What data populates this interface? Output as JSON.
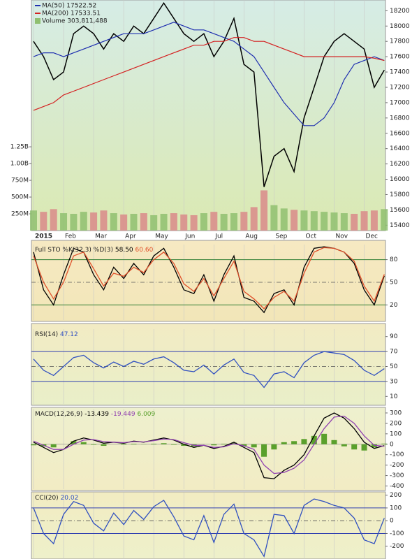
{
  "chart_data": [
    {
      "type": "price",
      "xticks": [
        {
          "value": 0,
          "label": "2015"
        },
        {
          "value": 3,
          "label": "Feb"
        },
        {
          "value": 6,
          "label": "Mar"
        },
        {
          "value": 9,
          "label": "Apr"
        },
        {
          "value": 12,
          "label": "May"
        },
        {
          "value": 15,
          "label": "Jun"
        },
        {
          "value": 18,
          "label": "Jul"
        },
        {
          "value": 21,
          "label": "Aug"
        },
        {
          "value": 24,
          "label": "Sep"
        },
        {
          "value": 27,
          "label": "Oct"
        },
        {
          "value": 30,
          "label": "Nov"
        },
        {
          "value": 33,
          "label": "Dec"
        }
      ],
      "ylim": [
        15330,
        18340
      ],
      "yticks": [
        18200,
        18000,
        17800,
        17600,
        17400,
        17200,
        17000,
        16800,
        16600,
        16400,
        16200,
        16000,
        15800,
        15600,
        15400
      ],
      "vlim": [
        0,
        3440
      ],
      "vticks": [
        {
          "value": 1250,
          "label": "1.25B"
        },
        {
          "value": 1000,
          "label": "1.00B"
        },
        {
          "value": 750,
          "label": "750M"
        },
        {
          "value": 500,
          "label": "500M"
        },
        {
          "value": 250,
          "label": "250M"
        }
      ],
      "series": [
        {
          "color": "#000000",
          "values": [
            17800,
            17600,
            17300,
            17400,
            17900,
            18000,
            17900,
            17700,
            17900,
            17800,
            18000,
            17900,
            18100,
            18300,
            18100,
            17900,
            17800,
            17900,
            17600,
            17800,
            18100,
            17500,
            17400,
            15900,
            16300,
            16400,
            16100,
            16800,
            17200,
            17600,
            17800,
            17900,
            17800,
            17700,
            17200,
            17425
          ]
        },
        {
          "name": "MA(50) 17522.52",
          "color": "#1f2fb0",
          "values": [
            17600,
            17650,
            17650,
            17600,
            17650,
            17700,
            17750,
            17800,
            17850,
            17900,
            17900,
            17900,
            17950,
            18000,
            18050,
            18000,
            17950,
            17950,
            17900,
            17850,
            17800,
            17700,
            17600,
            17400,
            17200,
            17000,
            16850,
            16700,
            16700,
            16800,
            17000,
            17300,
            17500,
            17550,
            17600,
            17550
          ]
        },
        {
          "name": "MA(200) 17533.51",
          "color": "#d42020",
          "values": [
            16900,
            16950,
            17000,
            17100,
            17150,
            17200,
            17250,
            17300,
            17350,
            17400,
            17450,
            17500,
            17550,
            17600,
            17650,
            17700,
            17750,
            17750,
            17800,
            17800,
            17850,
            17850,
            17800,
            17800,
            17750,
            17700,
            17650,
            17600,
            17600,
            17600,
            17600,
            17600,
            17600,
            17600,
            17580,
            17550
          ]
        }
      ],
      "volume": {
        "name": "Volume 303,811,488",
        "up_color": "#8fbf70",
        "down_color": "#d98a8a",
        "values": [
          300,
          280,
          320,
          260,
          250,
          280,
          270,
          300,
          260,
          240,
          250,
          260,
          230,
          250,
          260,
          240,
          230,
          260,
          280,
          250,
          260,
          280,
          350,
          600,
          380,
          330,
          310,
          300,
          290,
          280,
          270,
          260,
          250,
          290,
          300,
          320
        ]
      }
    },
    {
      "type": "line",
      "title": "Full STO %K(32,3) %D(3)",
      "ylim": [
        0,
        100
      ],
      "yticks": [
        80,
        50,
        20
      ],
      "hlines": [
        80,
        20
      ],
      "midline": 50,
      "hline_color": "#2e7d32",
      "series": [
        {
          "label": "58.50",
          "color": "#000000",
          "values": [
            90,
            40,
            20,
            60,
            95,
            90,
            60,
            40,
            70,
            55,
            75,
            60,
            85,
            95,
            70,
            40,
            35,
            60,
            25,
            60,
            85,
            30,
            25,
            10,
            35,
            40,
            20,
            70,
            95,
            97,
            95,
            90,
            75,
            40,
            20,
            58.5
          ]
        },
        {
          "label": "60.60",
          "color": "#e0502a",
          "values": [
            85,
            50,
            28,
            50,
            85,
            90,
            68,
            45,
            62,
            58,
            70,
            63,
            80,
            90,
            75,
            48,
            38,
            55,
            32,
            55,
            78,
            38,
            28,
            15,
            30,
            38,
            25,
            62,
            90,
            96,
            95,
            90,
            78,
            45,
            25,
            60.6
          ]
        }
      ]
    },
    {
      "type": "line",
      "title": "RSI(14)",
      "ylim": [
        0,
        100
      ],
      "yticks": [
        90,
        70,
        50,
        30,
        10
      ],
      "hlines": [
        70,
        30
      ],
      "midline": 50,
      "hline_color": "#3040b0",
      "series": [
        {
          "label": "47.12",
          "color": "#3050c0",
          "values": [
            60,
            45,
            38,
            50,
            62,
            65,
            55,
            48,
            56,
            50,
            57,
            53,
            60,
            63,
            55,
            45,
            43,
            52,
            40,
            52,
            60,
            42,
            38,
            22,
            40,
            43,
            35,
            55,
            65,
            70,
            68,
            66,
            58,
            45,
            38,
            47.12
          ]
        }
      ]
    },
    {
      "type": "macd",
      "title": "MACD(12,26,9)",
      "ylim": [
        -430,
        340
      ],
      "yticks": [
        300,
        200,
        100,
        0,
        -100,
        -200,
        -300,
        -400
      ],
      "series": [
        {
          "label": "-13.439",
          "color": "#000000",
          "values": [
            20,
            -30,
            -80,
            -50,
            30,
            60,
            40,
            10,
            20,
            10,
            30,
            20,
            40,
            60,
            40,
            0,
            -30,
            -10,
            -40,
            -20,
            20,
            -30,
            -80,
            -320,
            -330,
            -250,
            -200,
            -100,
            80,
            250,
            300,
            250,
            150,
            20,
            -40,
            -13.439
          ]
        },
        {
          "label": "-19.449",
          "color": "#9040b0",
          "values": [
            30,
            -10,
            -50,
            -50,
            0,
            40,
            45,
            25,
            20,
            15,
            25,
            22,
            35,
            50,
            45,
            15,
            -10,
            -10,
            -30,
            -25,
            5,
            -15,
            -50,
            -200,
            -280,
            -270,
            -230,
            -150,
            0,
            150,
            260,
            270,
            200,
            80,
            -10,
            -19.449
          ]
        }
      ],
      "histogram": {
        "label": "6.009",
        "color": "#5aa02c",
        "values": [
          -10,
          -20,
          -30,
          0,
          30,
          20,
          -5,
          -15,
          0,
          -5,
          5,
          -2,
          5,
          10,
          -5,
          -15,
          -20,
          0,
          -10,
          5,
          15,
          -15,
          -30,
          -120,
          -50,
          20,
          30,
          50,
          80,
          100,
          40,
          -20,
          -50,
          -60,
          -30,
          6.009
        ]
      }
    },
    {
      "type": "line",
      "title": "CCI(20)",
      "ylim": [
        -300,
        220
      ],
      "yticks": [
        200,
        100,
        0,
        -100,
        -200
      ],
      "hlines": [
        100,
        -100
      ],
      "midline": 0,
      "hline_color": "#3040b0",
      "series": [
        {
          "label": "20.02",
          "color": "#3050c0",
          "values": [
            100,
            -100,
            -180,
            50,
            150,
            120,
            -20,
            -80,
            60,
            -30,
            80,
            10,
            110,
            160,
            30,
            -120,
            -150,
            40,
            -170,
            50,
            130,
            -100,
            -150,
            -280,
            50,
            40,
            -100,
            120,
            170,
            150,
            120,
            100,
            20,
            -150,
            -180,
            20.02
          ]
        }
      ]
    }
  ]
}
